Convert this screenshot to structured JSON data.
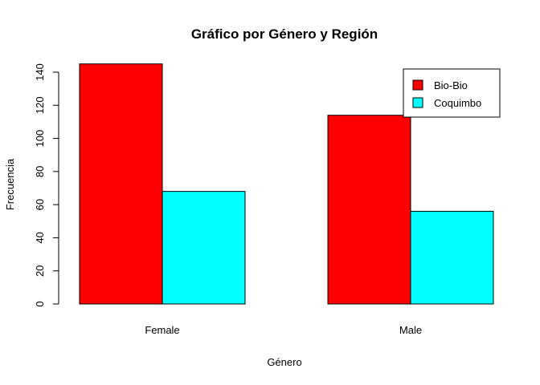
{
  "chart_data": {
    "type": "bar",
    "title": "Gráfico por Género y Región",
    "xlabel": "Género",
    "ylabel": "Frecuencia",
    "categories": [
      "Female",
      "Male"
    ],
    "series": [
      {
        "name": "Bio-Bio",
        "values": [
          145,
          114
        ],
        "color": "#ff0000"
      },
      {
        "name": "Coquimbo",
        "values": [
          68,
          56
        ],
        "color": "#00ffff"
      }
    ],
    "ylim": [
      0,
      140
    ],
    "yticks": [
      0,
      20,
      40,
      60,
      80,
      100,
      120,
      140
    ],
    "grid": false,
    "legend_position": "top-right",
    "layout": "grouped"
  }
}
